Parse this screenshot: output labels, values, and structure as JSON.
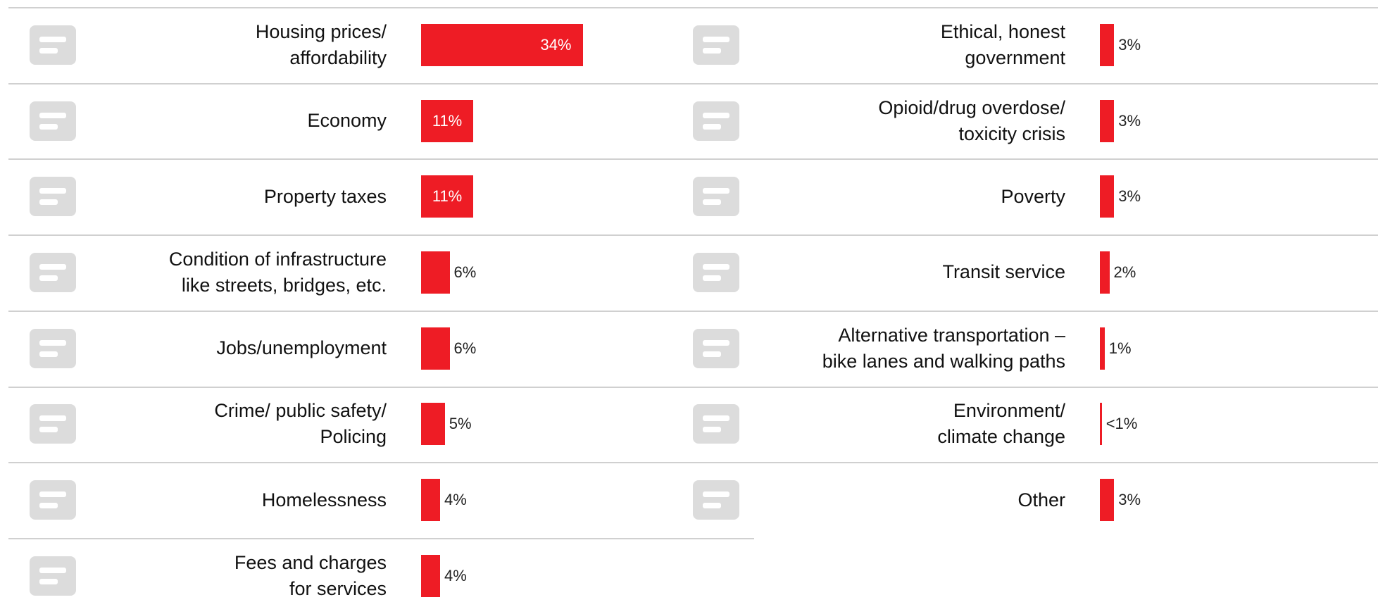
{
  "chart_data": [
    {
      "type": "bar",
      "color": "#ee1c25",
      "categories": [
        "Housing prices/\naffordability",
        "Economy",
        "Property taxes",
        "Condition of infrastructure\nlike streets,  bridges, etc.",
        "Jobs/unemployment",
        "Crime/ public safety/\nPolicing",
        "Homelessness",
        "Fees and charges\nfor services"
      ],
      "values": [
        34,
        11,
        11,
        6,
        6,
        5,
        4,
        4
      ],
      "value_labels": [
        "34%",
        "11%",
        "11%",
        "6%",
        "6%",
        "5%",
        "4%",
        "4%"
      ]
    },
    {
      "type": "bar",
      "color": "#ee1c25",
      "categories": [
        "Ethical, honest\ngovernment",
        "Opioid/drug overdose/\ntoxicity crisis",
        "Poverty",
        "Transit service",
        "Alternative transportation –\nbike lanes and walking paths",
        "Environment/\nclimate change",
        "Other"
      ],
      "values": [
        3,
        3,
        3,
        2,
        1,
        0.4,
        3
      ],
      "value_labels": [
        "3%",
        "3%",
        "3%",
        "2%",
        "1%",
        "<1%",
        "3%"
      ]
    }
  ]
}
